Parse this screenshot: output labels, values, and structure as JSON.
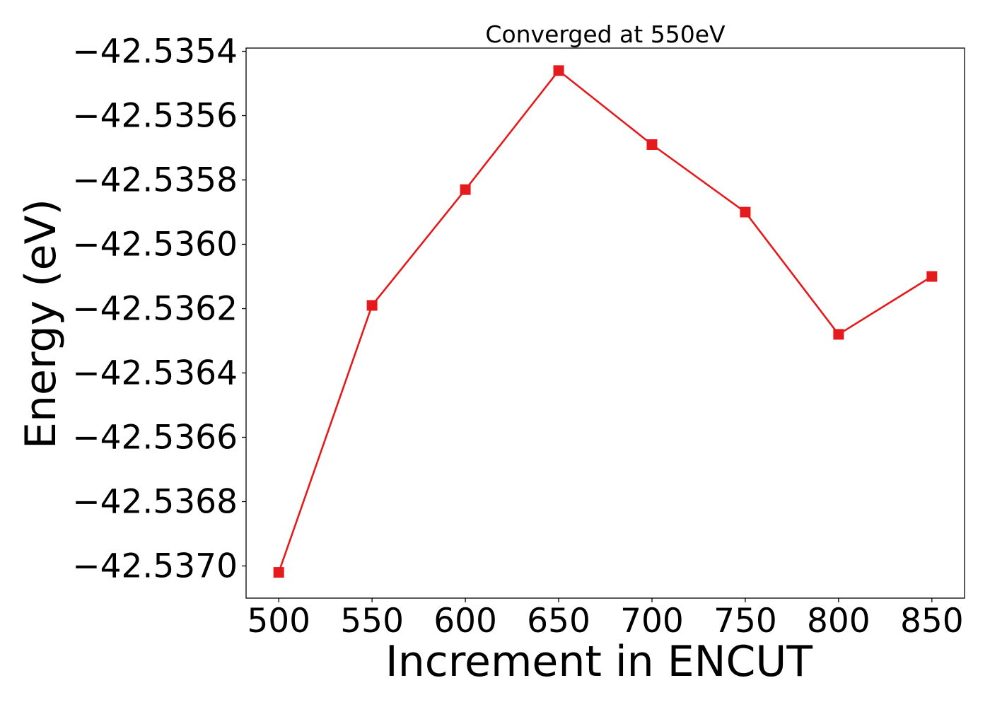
{
  "chart_data": {
    "type": "line",
    "title": "Converged at 550eV",
    "xlabel": "Increment in ENCUT",
    "ylabel": "Energy (eV)",
    "x": [
      500,
      550,
      600,
      650,
      700,
      750,
      800,
      850
    ],
    "series": [
      {
        "values": [
          -42.53702,
          -42.53619,
          -42.53583,
          -42.53546,
          -42.53569,
          -42.5359,
          -42.53628,
          -42.5361
        ],
        "color": "#e41a1c",
        "marker": "square"
      }
    ],
    "xticks": [
      500,
      550,
      600,
      650,
      700,
      750,
      800,
      850
    ],
    "xtick_labels": [
      "500",
      "550",
      "600",
      "650",
      "700",
      "750",
      "800",
      "850"
    ],
    "yticks": [
      -42.5354,
      -42.5356,
      -42.5358,
      -42.536,
      -42.5362,
      -42.5364,
      -42.5366,
      -42.5368,
      -42.537
    ],
    "ytick_labels": [
      "−42.5354",
      "−42.5356",
      "−42.5358",
      "−42.5360",
      "−42.5362",
      "−42.5364",
      "−42.5366",
      "−42.5368",
      "−42.5370"
    ],
    "xlim": [
      482.5,
      867.5
    ],
    "ylim": [
      -42.5371,
      -42.53539
    ],
    "grid": false,
    "legend": "none"
  }
}
